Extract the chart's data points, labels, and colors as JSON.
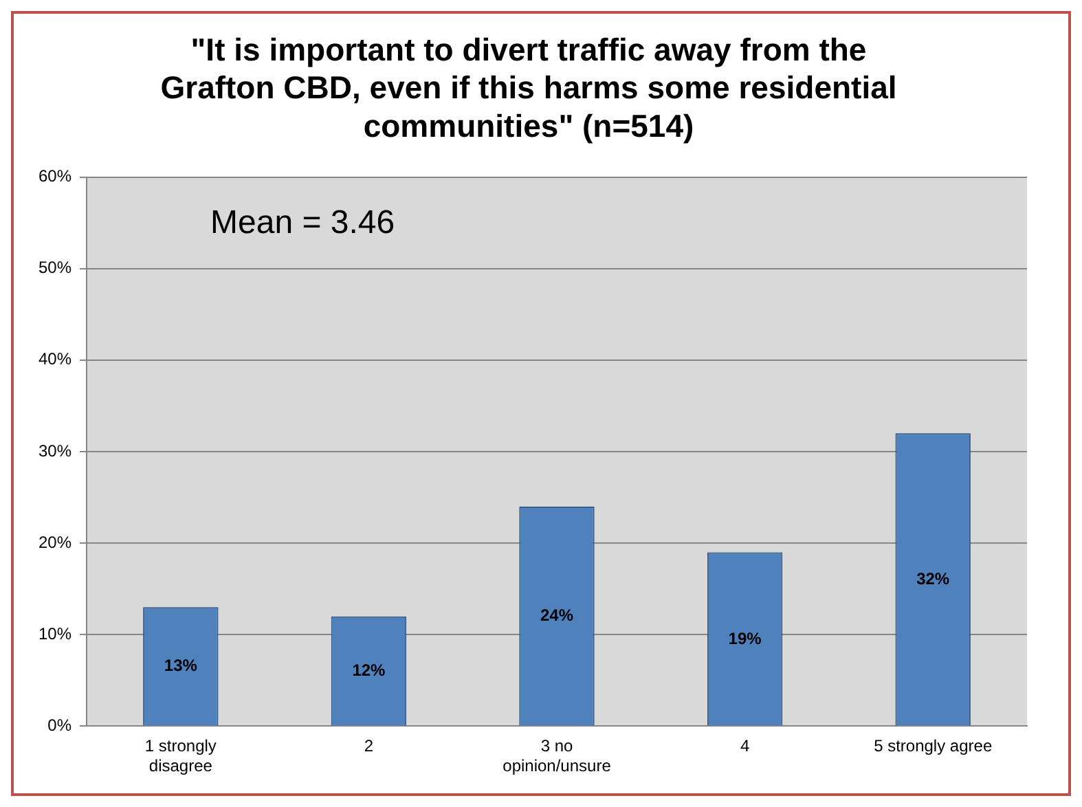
{
  "chart_data": {
    "type": "bar",
    "title": "\"It is important to divert traffic away from the Grafton CBD, even if this harms some residential communities\" (n=514)",
    "categories": [
      "1 strongly disagree",
      "2",
      "3 no opinion/unsure",
      "4",
      "5 strongly agree"
    ],
    "values": [
      13,
      12,
      24,
      19,
      32
    ],
    "color": "#4f81bd",
    "ylim": [
      0,
      60
    ],
    "yticks": [
      {
        "value": 0,
        "label": "0%"
      },
      {
        "value": 10,
        "label": "10%"
      },
      {
        "value": 20,
        "label": "20%"
      },
      {
        "value": 30,
        "label": "30%"
      },
      {
        "value": 40,
        "label": "40%"
      },
      {
        "value": 50,
        "label": "50%"
      },
      {
        "value": 60,
        "label": "60%"
      }
    ],
    "value_labels": [
      "13%",
      "12%",
      "24%",
      "19%",
      "32%"
    ],
    "annotations": [
      "Mean = 3.46"
    ],
    "grid": "y",
    "legend": false
  }
}
